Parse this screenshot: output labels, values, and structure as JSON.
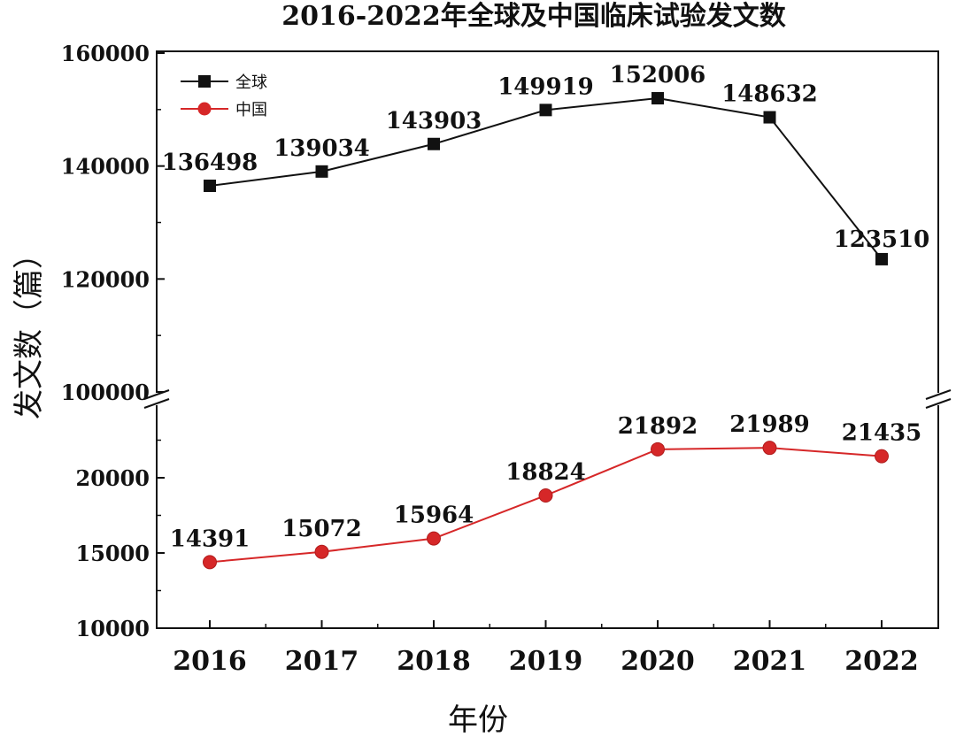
{
  "chart_data": {
    "type": "line",
    "title": "2016-2022年全球及中国临床试验发文数",
    "xlabel": "年份",
    "ylabel": "发文数（篇）",
    "categories": [
      "2016",
      "2017",
      "2018",
      "2019",
      "2020",
      "2021",
      "2022"
    ],
    "y_axis_break": true,
    "upper_ylim": [
      100000,
      160000
    ],
    "upper_yticks": [
      "100000",
      "120000",
      "140000",
      "160000"
    ],
    "lower_ylim": [
      10000,
      25000
    ],
    "lower_yticks": [
      "10000",
      "15000",
      "20000"
    ],
    "series": [
      {
        "name": "全球",
        "marker": "square",
        "color": "#111111",
        "panel": "upper",
        "values": [
          136498,
          139034,
          143903,
          149919,
          152006,
          148632,
          123510
        ],
        "labels": [
          "136498",
          "139034",
          "143903",
          "149919",
          "152006",
          "148632",
          "123510"
        ]
      },
      {
        "name": "中国",
        "marker": "circle",
        "color": "#d62728",
        "panel": "lower",
        "values": [
          14391,
          15072,
          15964,
          18824,
          21892,
          21989,
          21435
        ],
        "labels": [
          "14391",
          "15072",
          "15964",
          "18824",
          "21892",
          "21989",
          "21435"
        ]
      }
    ],
    "legend_position": "top-left",
    "grid": false
  }
}
